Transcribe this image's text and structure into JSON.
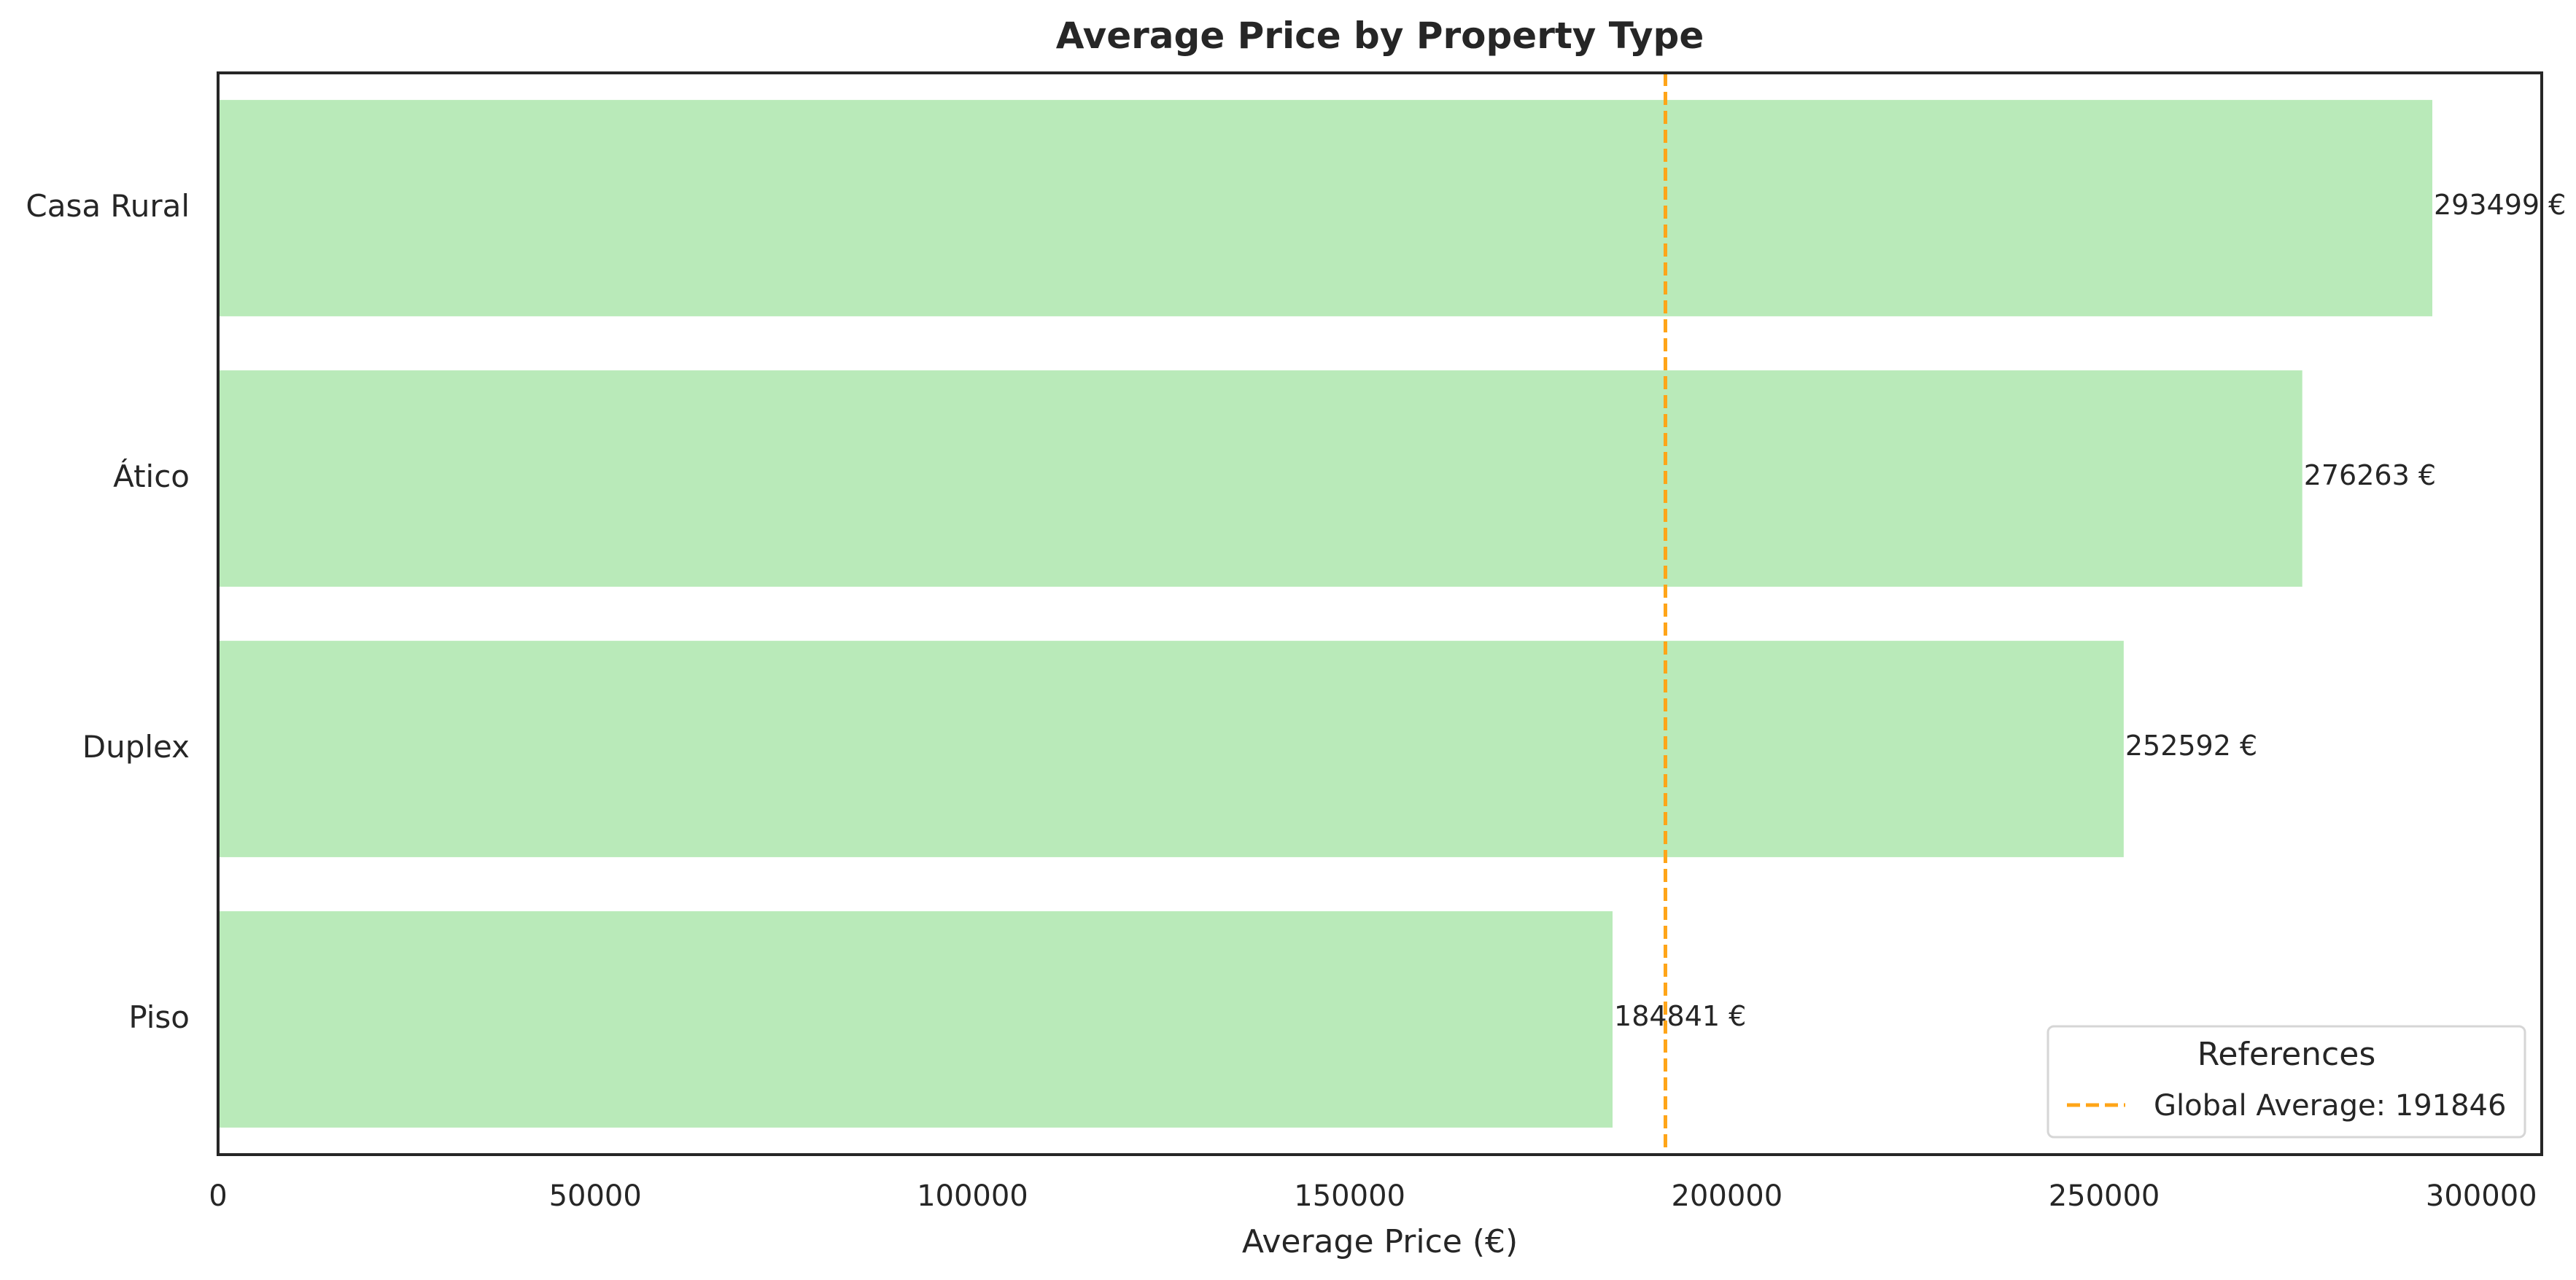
{
  "chart_data": {
    "type": "bar",
    "orientation": "horizontal",
    "title": "Average Price by Property Type",
    "xlabel": "Average Price (€)",
    "ylabel": "",
    "xlim": [
      0,
      308000
    ],
    "xticks": [
      0,
      50000,
      100000,
      150000,
      200000,
      250000,
      300000
    ],
    "grid": false,
    "categories": [
      "Casa Rural",
      "Ático",
      "Duplex",
      "Piso"
    ],
    "values": [
      293499,
      276263,
      252592,
      184841
    ],
    "value_labels": [
      "293499 €",
      "276263 €",
      "252592 €",
      "184841 €"
    ],
    "bar_color": "#b9eab9",
    "reference_line": {
      "value": 191846,
      "label": "Global Average: 191846",
      "color": "#ffa518",
      "style": "dashed"
    },
    "legend": {
      "title": "References",
      "placement": "bottom-right"
    }
  }
}
